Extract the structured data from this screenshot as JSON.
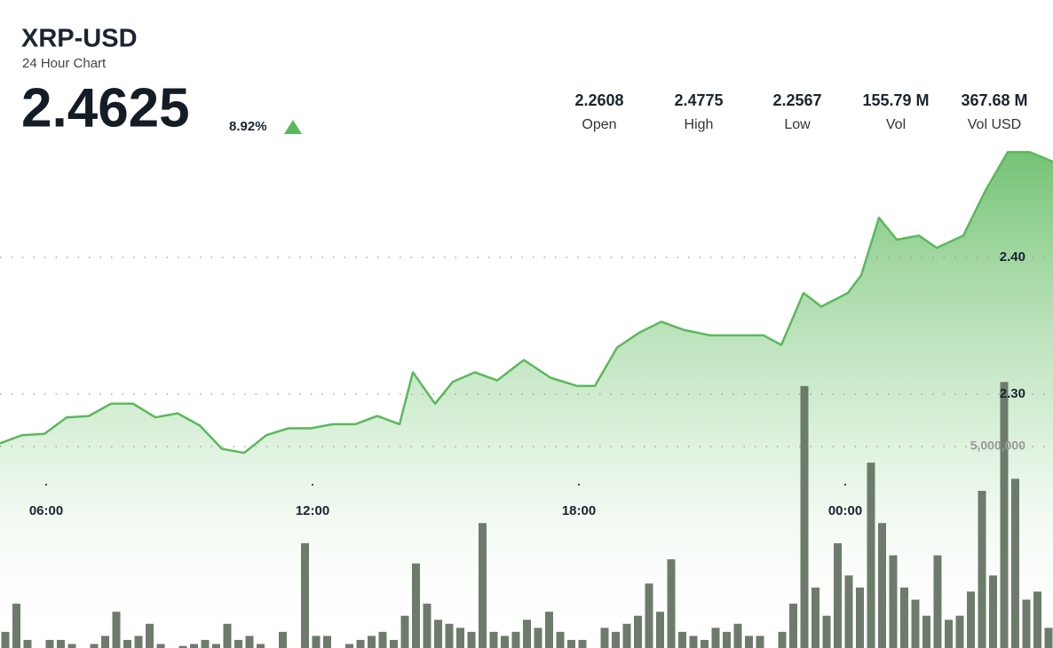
{
  "chart_data": {
    "type": "line",
    "title": "XRP-USD",
    "subtitle": "24 Hour Chart",
    "price": "2.4625",
    "change": "8.92%",
    "stats": [
      {
        "value": "2.2608",
        "label": "Open"
      },
      {
        "value": "2.4775",
        "label": "High"
      },
      {
        "value": "2.2567",
        "label": "Low"
      },
      {
        "value": "155.79 M",
        "label": "Vol"
      },
      {
        "value": "367.68 M",
        "label": "Vol USD"
      }
    ],
    "xlim": [
      4.96,
      28.68
    ],
    "xticks": [
      {
        "value": 6,
        "label": "06:00"
      },
      {
        "value": 12,
        "label": "12:00"
      },
      {
        "value": 18,
        "label": "18:00"
      },
      {
        "value": 24,
        "label": "00:00"
      }
    ],
    "ylim": [
      2.1143,
      2.5883
    ],
    "yticks": [
      {
        "value": 2.3,
        "label": "2.30"
      },
      {
        "value": 2.4,
        "label": "2.40"
      }
    ],
    "y2lim": [
      0,
      16080000
    ],
    "y2ticks": [
      {
        "value": 5000000,
        "label": "5,000,000"
      }
    ],
    "grid": true,
    "series": [
      {
        "color": "#5cb85c",
        "x": [
          4.96,
          5.46,
          5.96,
          6.46,
          6.96,
          7.46,
          7.96,
          8.46,
          8.96,
          9.46,
          9.96,
          10.46,
          10.96,
          11.46,
          11.96,
          12.46,
          12.96,
          13.46,
          13.96,
          14.26,
          14.76,
          15.16,
          15.66,
          16.16,
          16.76,
          17.36,
          17.96,
          18.36,
          18.86,
          19.36,
          19.86,
          20.36,
          20.96,
          21.56,
          22.16,
          22.56,
          23.06,
          23.46,
          24.06,
          24.36,
          24.76,
          25.16,
          25.66,
          26.06,
          26.66,
          27.16,
          27.66,
          28.16,
          28.68
        ],
        "values": [
          2.264,
          2.27,
          2.271,
          2.283,
          2.284,
          2.293,
          2.293,
          2.283,
          2.286,
          2.277,
          2.26,
          2.257,
          2.27,
          2.275,
          2.275,
          2.278,
          2.278,
          2.284,
          2.278,
          2.316,
          2.293,
          2.309,
          2.316,
          2.31,
          2.325,
          2.312,
          2.306,
          2.306,
          2.334,
          2.345,
          2.353,
          2.347,
          2.343,
          2.343,
          2.343,
          2.336,
          2.374,
          2.364,
          2.374,
          2.387,
          2.429,
          2.413,
          2.416,
          2.407,
          2.416,
          2.449,
          2.477,
          2.477,
          2.47
        ]
      },
      {
        "type": "bar",
        "axis": "y2",
        "color": "#6d7b6b",
        "x": [
          5.08,
          5.33,
          5.58,
          5.83,
          6.08,
          6.33,
          6.58,
          6.83,
          7.08,
          7.33,
          7.58,
          7.83,
          8.08,
          8.33,
          8.58,
          8.83,
          9.08,
          9.33,
          9.58,
          9.83,
          10.08,
          10.33,
          10.58,
          10.83,
          11.08,
          11.33,
          11.58,
          11.83,
          12.08,
          12.33,
          12.58,
          12.83,
          13.08,
          13.33,
          13.58,
          13.83,
          14.08,
          14.33,
          14.58,
          14.83,
          15.08,
          15.33,
          15.58,
          15.83,
          16.08,
          16.33,
          16.58,
          16.83,
          17.08,
          17.33,
          17.58,
          17.83,
          18.08,
          18.33,
          18.58,
          18.83,
          19.08,
          19.33,
          19.58,
          19.83,
          20.08,
          20.33,
          20.58,
          20.83,
          21.08,
          21.33,
          21.58,
          21.83,
          22.08,
          22.33,
          22.58,
          22.83,
          23.08,
          23.33,
          23.58,
          23.83,
          24.08,
          24.33,
          24.58,
          24.83,
          25.08,
          25.33,
          25.58,
          25.83,
          26.08,
          26.33,
          26.58,
          26.83,
          27.08,
          27.33,
          27.58,
          27.83,
          28.08,
          28.33,
          28.58
        ],
        "values": [
          400000,
          1100000,
          200000,
          0,
          200000,
          200000,
          100000,
          0,
          100000,
          300000,
          900000,
          200000,
          300000,
          600000,
          100000,
          0,
          50000,
          100000,
          200000,
          100000,
          600000,
          200000,
          300000,
          100000,
          0,
          400000,
          0,
          2600000,
          300000,
          300000,
          0,
          100000,
          200000,
          300000,
          400000,
          200000,
          800000,
          2100000,
          1100000,
          700000,
          600000,
          500000,
          400000,
          3100000,
          400000,
          300000,
          400000,
          700000,
          500000,
          900000,
          400000,
          200000,
          200000,
          0,
          500000,
          400000,
          600000,
          800000,
          1600000,
          900000,
          2200000,
          400000,
          300000,
          200000,
          500000,
          400000,
          600000,
          300000,
          300000,
          0,
          400000,
          1100000,
          6500000,
          1500000,
          800000,
          2600000,
          1800000,
          1500000,
          4600000,
          3100000,
          2300000,
          1500000,
          1200000,
          800000,
          2300000,
          700000,
          800000,
          1400000,
          3900000,
          1800000,
          6600000,
          4200000,
          1200000,
          1400000,
          500000
        ]
      }
    ]
  }
}
